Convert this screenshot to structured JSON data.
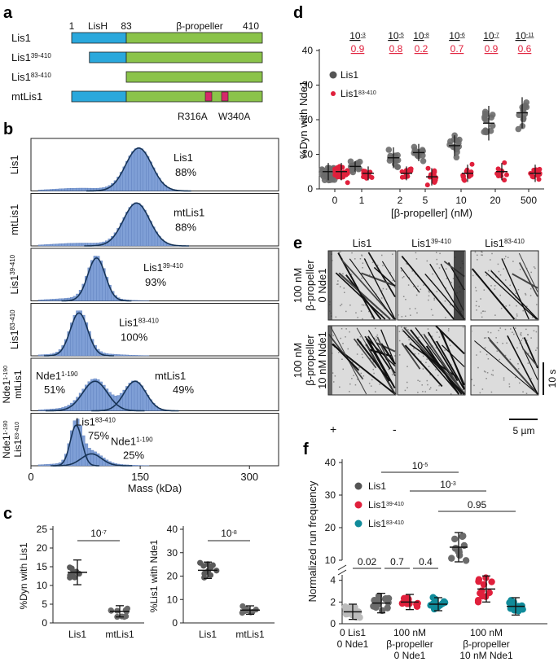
{
  "panel_letters": {
    "a": "a",
    "b": "b",
    "c": "c",
    "d": "d",
    "e": "e",
    "f": "f"
  },
  "colors": {
    "blue": "#2aa8dc",
    "green": "#8bc34a",
    "mass_fill": "#7f9fd6",
    "mass_line": "#173457",
    "gray": "#555555",
    "light_gray": "#c0c0c0",
    "red": "#e0203c",
    "teal": "#108b9a",
    "mut": "#d5286a"
  },
  "panel_a": {
    "ticks": [
      "1",
      "83",
      "410"
    ],
    "domain_labels": [
      "LisH",
      "β-propeller"
    ],
    "constructs": [
      {
        "name": "Lis1",
        "sup": ""
      },
      {
        "name": "Lis1",
        "sup": "39-410"
      },
      {
        "name": "Lis1",
        "sup": "83-410"
      },
      {
        "name": "mtLis1",
        "sup": ""
      }
    ],
    "mutations": [
      "R316A",
      "W340A"
    ]
  },
  "panel_b": {
    "xlabel": "Mass (kDa)",
    "x_ticks": [
      "0",
      "150",
      "300"
    ],
    "rows": [
      {
        "side": "Lis1",
        "side_sup": "",
        "side2": "",
        "side2_sup": "",
        "peaks": [
          {
            "name": "Lis1",
            "sup": "",
            "pct": "88%",
            "mass": 148
          }
        ]
      },
      {
        "side": "mtLis1",
        "side_sup": "",
        "side2": "",
        "side2_sup": "",
        "peaks": [
          {
            "name": "mtLis1",
            "sup": "",
            "pct": "88%",
            "mass": 145
          }
        ]
      },
      {
        "side": "Lis1",
        "side_sup": "39-410",
        "side2": "",
        "side2_sup": "",
        "peaks": [
          {
            "name": "Lis1",
            "sup": "39-410",
            "pct": "93%",
            "mass": 90
          }
        ]
      },
      {
        "side": "Lis1",
        "side_sup": "83-410",
        "side2": "",
        "side2_sup": "",
        "peaks": [
          {
            "name": "Lis1",
            "sup": "83-410",
            "pct": "100%",
            "mass": 66
          }
        ]
      },
      {
        "side": "mtLis1",
        "side_sup": "",
        "side2": "Nde1",
        "side2_sup": "1-190",
        "peaks": [
          {
            "name": "Nde1",
            "sup": "1-190",
            "pct": "51%",
            "mass": 88
          },
          {
            "name": "mtLis1",
            "sup": "",
            "pct": "49%",
            "mass": 143
          }
        ]
      },
      {
        "side": "Lis1",
        "side_sup": "83-410",
        "side2": "Nde1",
        "side2_sup": "1-190",
        "peaks": [
          {
            "name": "Lis1",
            "sup": "83-410",
            "pct": "75%",
            "mass": 62
          },
          {
            "name": "Nde1",
            "sup": "1-190",
            "pct": "25%",
            "mass": 83
          }
        ]
      }
    ]
  },
  "panel_c": {
    "left": {
      "ylabel": "%Dyn with Lis1",
      "y_ticks": [
        "0",
        "5",
        "10",
        "15",
        "20",
        "25"
      ],
      "pvalue": "10",
      "pexp": "-7",
      "categories": [
        "Lis1",
        "mtLis1"
      ],
      "means": [
        13.5,
        3.1
      ],
      "sd": [
        3.3,
        1.5
      ]
    },
    "right": {
      "ylabel": "%Lis1 with Nde1",
      "y_ticks": [
        "0",
        "10",
        "20",
        "30",
        "40"
      ],
      "pvalue": "10",
      "pexp": "-8",
      "categories": [
        "Lis1",
        "mtLis1"
      ],
      "means": [
        22.5,
        5.5
      ],
      "sd": [
        3.5,
        1.8
      ]
    }
  },
  "chart_data": [
    {
      "type": "scatter",
      "title": "",
      "xlabel": "[β-propeller] (nM)",
      "ylabel": "%Dyn with Nde1",
      "categories": [
        "0",
        "1",
        "2",
        "5",
        "10",
        "20",
        "500"
      ],
      "ylim": [
        0,
        40
      ],
      "legend": "top-left",
      "series": [
        {
          "name": "Lis1",
          "means": [
            5,
            6.5,
            9,
            10.5,
            12.5,
            19,
            22
          ],
          "sd": [
            2.5,
            1.5,
            3,
            2.5,
            3,
            5,
            4.5
          ]
        },
        {
          "name": "Lis1",
          "name_sup": "83-410",
          "means": [
            5,
            4.5,
            4.5,
            3.5,
            4.5,
            5,
            4.5
          ],
          "sd": [
            2.5,
            2,
            2,
            2.5,
            2.5,
            2.5,
            2.5
          ]
        }
      ],
      "p_values": [
        {
          "base": "10",
          "exp": "-3",
          "q": "0.9"
        },
        {
          "base": "10",
          "exp": "-5",
          "q": "0.8"
        },
        {
          "base": "10",
          "exp": "-8",
          "q": "0.2"
        },
        {
          "base": "10",
          "exp": "-6",
          "q": "0.7"
        },
        {
          "base": "10",
          "exp": "-7",
          "q": "0.9"
        },
        {
          "base": "10",
          "exp": "-11",
          "q": "0.6"
        }
      ],
      "y_ticks": [
        "0",
        "10",
        "20",
        "30",
        "40"
      ]
    },
    {
      "type": "scatter",
      "title": "",
      "xlabel": "",
      "ylabel": "Normalized run frequency",
      "ylim": [
        0,
        40
      ],
      "y_ticks": [
        "0",
        "2",
        "4",
        "10",
        "20",
        "30",
        "40"
      ],
      "legend": "top-left",
      "series": [
        {
          "name": "Lis1",
          "name_sup": "",
          "means": [
            1.1,
            1.9,
            14
          ],
          "sd": [
            0.7,
            0.9,
            4.5
          ]
        },
        {
          "name": "Lis1",
          "name_sup": "39-410",
          "means": [
            2,
            3.2
          ],
          "sd": [
            0.7,
            1.2
          ]
        },
        {
          "name": "Lis1",
          "name_sup": "83-410",
          "means": [
            1.8,
            1.6
          ],
          "sd": [
            0.6,
            0.8
          ]
        }
      ],
      "group_labels": [
        [
          "0 Lis1",
          "0 Nde1"
        ],
        [
          "100 nM",
          "β-propeller",
          "0 Nde1"
        ],
        [
          "100 nM",
          "β-propeller",
          "10 nM Nde1"
        ]
      ],
      "comparisons": [
        {
          "text": "10",
          "exp": "-5"
        },
        {
          "text": "10",
          "exp": "-3"
        },
        {
          "text": "0.95",
          "exp": ""
        },
        {
          "text": "0.02",
          "exp": ""
        },
        {
          "text": "0.7",
          "exp": ""
        },
        {
          "text": "0.4",
          "exp": ""
        }
      ]
    }
  ],
  "panel_e": {
    "columns": [
      {
        "name": "Lis1",
        "sup": ""
      },
      {
        "name": "Lis1",
        "sup": "39-410"
      },
      {
        "name": "Lis1",
        "sup": "83-410"
      }
    ],
    "rows": [
      [
        "100 nM",
        "β-propeller",
        "0 Nde1"
      ],
      [
        "100 nM",
        "β-propeller",
        "10 nM Nde1"
      ]
    ],
    "plus": "+",
    "minus": "-",
    "time_scale": "10 s",
    "space_scale": "5 µm"
  }
}
